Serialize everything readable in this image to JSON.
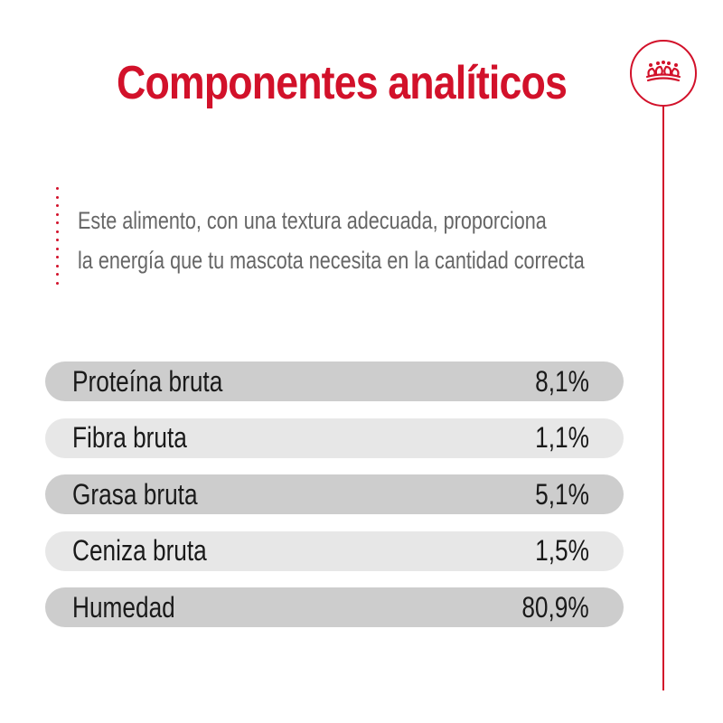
{
  "title": "Componentes analíticos",
  "intro": {
    "line1": "Este alimento, con una textura adecuada, proporciona",
    "line2": "la energía que tu mascota necesita en la cantidad correcta"
  },
  "logo": {
    "icon": "crown-icon"
  },
  "components": [
    {
      "label": "Proteína bruta",
      "value": "8,1%"
    },
    {
      "label": "Fibra bruta",
      "value": "1,1%"
    },
    {
      "label": "Grasa bruta",
      "value": "5,1%"
    },
    {
      "label": "Ceniza bruta",
      "value": "1,5%"
    },
    {
      "label": "Humedad",
      "value": "80,9%"
    }
  ],
  "colors": {
    "accent": "#d2112a",
    "row_dark": "#cdcdcd",
    "row_light": "#e7e7e7",
    "text": "#1a1a1a",
    "intro_text": "#666666"
  }
}
